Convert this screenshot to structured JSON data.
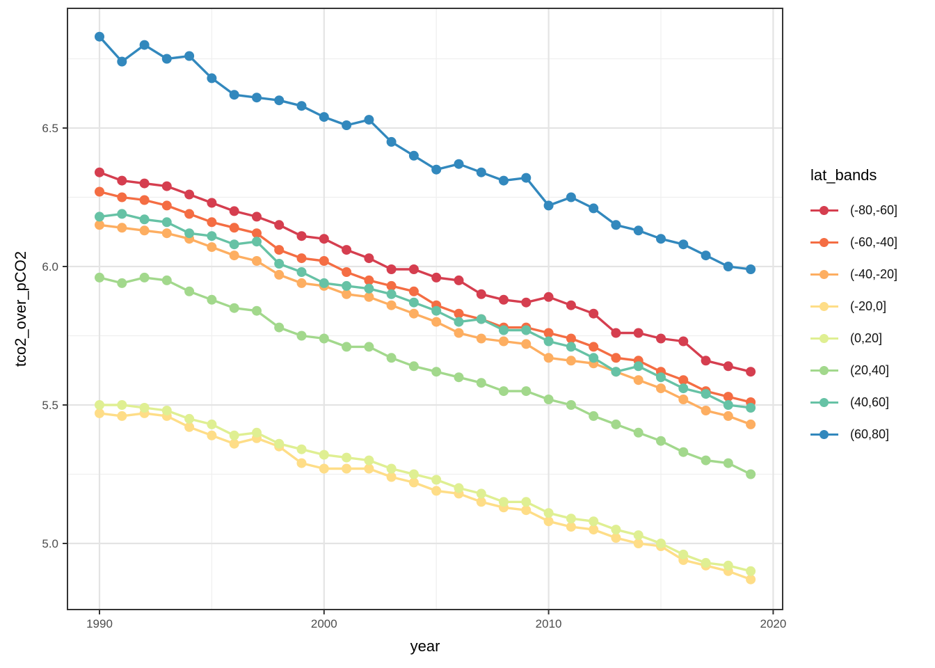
{
  "axes": {
    "x_title": "year",
    "y_title": "tco2_over_pCO2"
  },
  "legend": {
    "title": "lat_bands"
  },
  "chart_data": {
    "type": "line",
    "title": "",
    "xlabel": "year",
    "ylabel": "tco2_over_pCO2",
    "legend_title": "lat_bands",
    "legend_position": "right",
    "grid": true,
    "xlim": [
      1988.6,
      2020.4
    ],
    "ylim": [
      4.76,
      6.93
    ],
    "x_ticks": [
      1990,
      2000,
      2010,
      2020
    ],
    "x_tick_labels": [
      "1990",
      "2000",
      "2010",
      "2020"
    ],
    "x_minor_ticks": [
      1995,
      2005,
      2015
    ],
    "y_ticks": [
      5.0,
      5.5,
      6.0,
      6.5
    ],
    "y_tick_labels": [
      "5.0",
      "5.5",
      "6.0",
      "6.5"
    ],
    "y_minor_ticks": [
      5.25,
      5.75,
      6.25,
      6.75
    ],
    "x": [
      1990,
      1991,
      1992,
      1993,
      1994,
      1995,
      1996,
      1997,
      1998,
      1999,
      2000,
      2001,
      2002,
      2003,
      2004,
      2005,
      2006,
      2007,
      2008,
      2009,
      2010,
      2011,
      2012,
      2013,
      2014,
      2015,
      2016,
      2017,
      2018,
      2019
    ],
    "series": [
      {
        "name": "(-80,-60]",
        "color": "#d53e4f",
        "values": [
          6.34,
          6.31,
          6.3,
          6.29,
          6.26,
          6.23,
          6.2,
          6.18,
          6.15,
          6.11,
          6.1,
          6.06,
          6.03,
          5.99,
          5.99,
          5.96,
          5.95,
          5.9,
          5.88,
          5.87,
          5.89,
          5.86,
          5.83,
          5.76,
          5.76,
          5.74,
          5.73,
          5.66,
          5.64,
          5.62
        ]
      },
      {
        "name": "(-60,-40]",
        "color": "#f46d43",
        "values": [
          6.27,
          6.25,
          6.24,
          6.22,
          6.19,
          6.16,
          6.14,
          6.12,
          6.06,
          6.03,
          6.02,
          5.98,
          5.95,
          5.93,
          5.91,
          5.86,
          5.83,
          5.81,
          5.78,
          5.78,
          5.76,
          5.74,
          5.71,
          5.67,
          5.66,
          5.62,
          5.59,
          5.55,
          5.53,
          5.51
        ]
      },
      {
        "name": "(-40,-20]",
        "color": "#fdae61",
        "values": [
          6.15,
          6.14,
          6.13,
          6.12,
          6.1,
          6.07,
          6.04,
          6.02,
          5.97,
          5.94,
          5.93,
          5.9,
          5.89,
          5.86,
          5.83,
          5.8,
          5.76,
          5.74,
          5.73,
          5.72,
          5.67,
          5.66,
          5.65,
          5.62,
          5.59,
          5.56,
          5.52,
          5.48,
          5.46,
          5.43
        ]
      },
      {
        "name": "(-20,0]",
        "color": "#fedd87",
        "values": [
          5.47,
          5.46,
          5.47,
          5.46,
          5.42,
          5.39,
          5.36,
          5.38,
          5.35,
          5.29,
          5.27,
          5.27,
          5.27,
          5.24,
          5.22,
          5.19,
          5.18,
          5.15,
          5.13,
          5.12,
          5.08,
          5.06,
          5.05,
          5.02,
          5.0,
          4.99,
          4.94,
          4.92,
          4.9,
          4.87
        ]
      },
      {
        "name": "(0,20]",
        "color": "#dfef92",
        "values": [
          5.5,
          5.5,
          5.49,
          5.48,
          5.45,
          5.43,
          5.39,
          5.4,
          5.36,
          5.34,
          5.32,
          5.31,
          5.3,
          5.27,
          5.25,
          5.23,
          5.2,
          5.18,
          5.15,
          5.15,
          5.11,
          5.09,
          5.08,
          5.05,
          5.03,
          5.0,
          4.96,
          4.93,
          4.92,
          4.9
        ]
      },
      {
        "name": "(20,40]",
        "color": "#a2d88c",
        "values": [
          5.96,
          5.94,
          5.96,
          5.95,
          5.91,
          5.88,
          5.85,
          5.84,
          5.78,
          5.75,
          5.74,
          5.71,
          5.71,
          5.67,
          5.64,
          5.62,
          5.6,
          5.58,
          5.55,
          5.55,
          5.52,
          5.5,
          5.46,
          5.43,
          5.4,
          5.37,
          5.33,
          5.3,
          5.29,
          5.25
        ]
      },
      {
        "name": "(40,60]",
        "color": "#66c2a5",
        "values": [
          6.18,
          6.19,
          6.17,
          6.16,
          6.12,
          6.11,
          6.08,
          6.09,
          6.01,
          5.98,
          5.94,
          5.93,
          5.92,
          5.9,
          5.87,
          5.84,
          5.8,
          5.81,
          5.77,
          5.77,
          5.73,
          5.71,
          5.67,
          5.62,
          5.64,
          5.6,
          5.56,
          5.54,
          5.5,
          5.49
        ]
      },
      {
        "name": "(60,80]",
        "color": "#3288bd",
        "values": [
          6.83,
          6.74,
          6.8,
          6.75,
          6.76,
          6.68,
          6.62,
          6.61,
          6.6,
          6.58,
          6.54,
          6.51,
          6.53,
          6.45,
          6.4,
          6.35,
          6.37,
          6.34,
          6.31,
          6.32,
          6.22,
          6.25,
          6.21,
          6.15,
          6.13,
          6.1,
          6.08,
          6.04,
          6.0,
          5.99
        ]
      }
    ],
    "style": {
      "panel_border_color": "#343434",
      "grid_major_color": "#e4e4e4",
      "grid_minor_color": "#efefef",
      "tick_color": "#333333",
      "tick_text_color": "#4d4d4d"
    }
  }
}
